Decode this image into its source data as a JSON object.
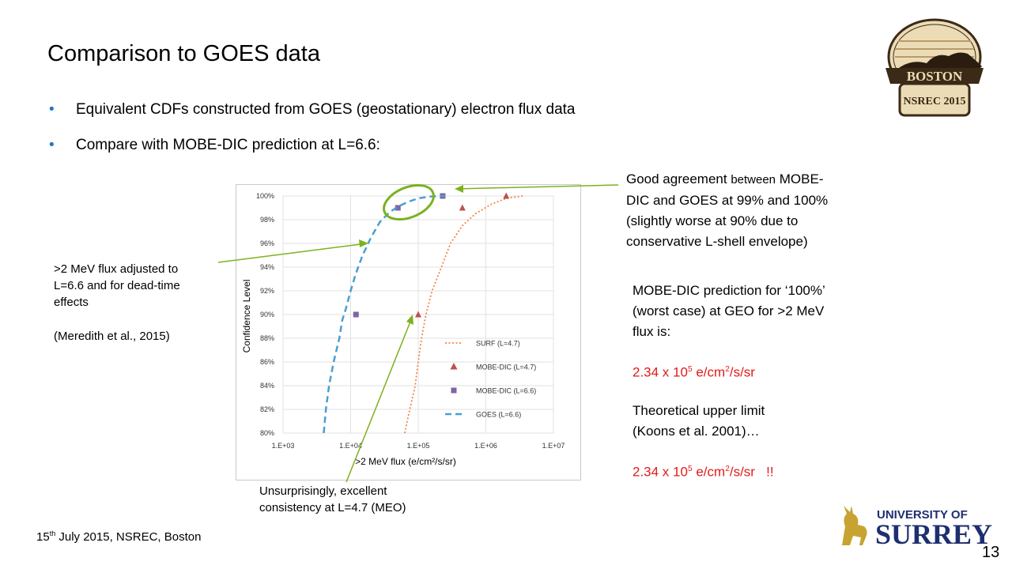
{
  "slide": {
    "title": "Comparison to GOES data",
    "bullets": [
      "Equivalent CDFs constructed from GOES (geostationary) electron flux data",
      "Compare with MOBE-DIC prediction at L=6.6:"
    ],
    "footer": {
      "day": "15",
      "day_suffix": "th",
      "rest": " July 2015, NSREC, Boston"
    },
    "page_number": "13",
    "logo_boston": {
      "line1": "BOSTON",
      "line2": "NSREC 2015"
    },
    "logo_surrey": {
      "line1": "UNIVERSITY OF",
      "line2": "SURREY"
    }
  },
  "annotations": {
    "left": {
      "lines": [
        ">2 MeV flux adjusted to",
        "L=6.6 and for dead-time",
        "effects"
      ],
      "citation": "(Meredith et al., 2015)"
    },
    "top_right": {
      "line1a": "Good agreement ",
      "line1b": "between",
      "line1c": " MOBE-",
      "lines": [
        "DIC and GOES at 99% and 100%",
        "(slightly worse at 90% due to",
        "conservative L-shell envelope)"
      ]
    },
    "right": {
      "lines": [
        "MOBE-DIC prediction for ‘100%’",
        "(worst case) at GEO for >2 MeV",
        "flux is:"
      ],
      "value1": {
        "mantissa": "2.34 x 10",
        "exp": "5",
        "unit": " e/cm",
        "unit_exp": "2",
        "unit_rest": "/s/sr"
      },
      "theory_lines": [
        "Theoretical upper limit",
        "(Koons et al. 2001)…"
      ],
      "value2": {
        "mantissa": "2.34 x 10",
        "exp": "5",
        "unit": " e/cm",
        "unit_exp": "2",
        "unit_rest": "/s/sr",
        "suffix": "   !!"
      }
    },
    "bottom": {
      "lines": [
        "Unsurprisingly, excellent",
        "consistency at L=4.7 (MEO)"
      ]
    }
  },
  "colors": {
    "bullet": "#1f77c8",
    "highlight": "#e21a1a",
    "arrow": "#7bb21f",
    "goes": "#4a9fd0",
    "surf": "#f0864a",
    "mobe47": "#c0504d",
    "mobe66": "#8064a2"
  },
  "chart_data": {
    "type": "line",
    "xscale": "log",
    "xlim": [
      1000,
      10000000
    ],
    "ylim": [
      80,
      100
    ],
    "xlabel": ">2 MeV flux (e/cm²/s/sr)",
    "ylabel": "Confidence Level",
    "xticks": [
      "1.E+03",
      "1.E+04",
      "1.E+05",
      "1.E+06",
      "1.E+07"
    ],
    "yticks": [
      "80%",
      "82%",
      "84%",
      "86%",
      "88%",
      "90%",
      "92%",
      "94%",
      "96%",
      "98%",
      "100%"
    ],
    "grid": true,
    "legend_position": "bottom-right",
    "series": [
      {
        "name": "SURF (L=4.7)",
        "style": "dotted-line",
        "x": [
          63000,
          75000,
          90000,
          100000,
          112000,
          130000,
          160000,
          220000,
          300000,
          450000,
          700000,
          1200000,
          2000000,
          3500000
        ],
        "y": [
          80,
          82,
          84,
          86,
          88,
          90,
          92,
          94,
          96,
          97.5,
          98.5,
          99.3,
          99.8,
          100
        ]
      },
      {
        "name": "MOBE-DIC (L=4.7)",
        "style": "triangle",
        "x": [
          100000,
          450000,
          2000000
        ],
        "y": [
          90,
          99,
          100
        ]
      },
      {
        "name": "MOBE-DIC (L=6.6)",
        "style": "square",
        "x": [
          12000,
          50000,
          230000
        ],
        "y": [
          90,
          99,
          100
        ]
      },
      {
        "name": "GOES (L=6.6)",
        "style": "dashed-line",
        "x": [
          4000,
          4300,
          4800,
          5600,
          6800,
          7500,
          8500,
          10000,
          12000,
          15000,
          20000,
          27000,
          37000,
          50000,
          70000,
          100000,
          150000,
          250000
        ],
        "y": [
          80,
          82,
          84,
          86,
          88,
          89.5,
          90.5,
          92,
          93.5,
          95,
          96.5,
          97.8,
          98.6,
          99.1,
          99.5,
          99.8,
          99.95,
          100
        ]
      }
    ]
  }
}
